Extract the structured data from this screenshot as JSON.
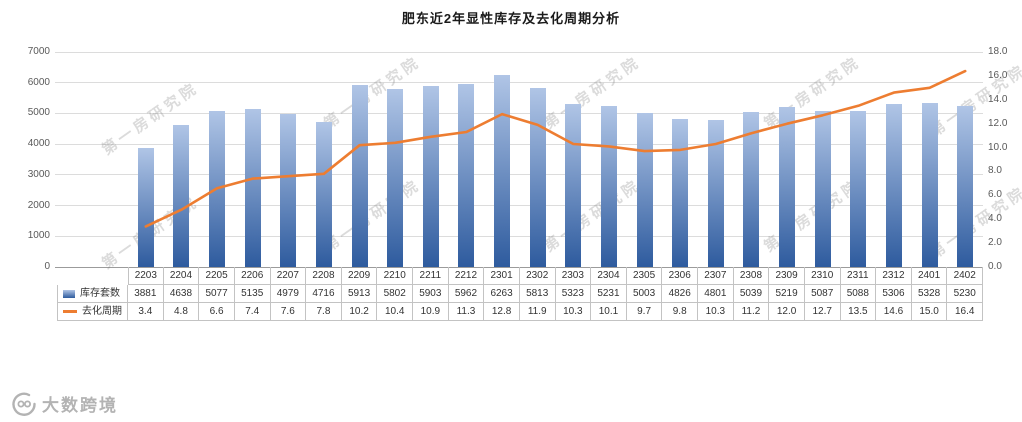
{
  "watermark": {
    "text": "第一房研究院"
  },
  "brand": {
    "name": "大数跨境"
  },
  "chart_data": {
    "type": "bar",
    "subtype": "bar+line combo with data table",
    "title": "肥东近2年显性库存及去化周期分析",
    "categories": [
      "2203",
      "2204",
      "2205",
      "2206",
      "2207",
      "2208",
      "2209",
      "2210",
      "2211",
      "2212",
      "2301",
      "2302",
      "2303",
      "2304",
      "2305",
      "2306",
      "2307",
      "2308",
      "2309",
      "2310",
      "2311",
      "2312",
      "2401",
      "2402"
    ],
    "series": [
      {
        "name": "库存套数",
        "type": "bar",
        "axis": "left",
        "color_top": "#b0c5e6",
        "color_bottom": "#2e5b9e",
        "values": [
          3881,
          4638,
          5077,
          5135,
          4979,
          4716,
          5913,
          5802,
          5903,
          5962,
          6263,
          5813,
          5323,
          5231,
          5003,
          4826,
          4801,
          5039,
          5219,
          5087,
          5088,
          5306,
          5328,
          5230
        ]
      },
      {
        "name": "去化周期",
        "type": "line",
        "axis": "right",
        "color": "#ED7D31",
        "values": [
          3.4,
          4.8,
          6.6,
          7.4,
          7.6,
          7.8,
          10.2,
          10.4,
          10.9,
          11.3,
          12.8,
          11.9,
          10.3,
          10.1,
          9.7,
          9.8,
          10.3,
          11.2,
          12.0,
          12.7,
          13.5,
          14.6,
          15.0,
          16.4
        ]
      }
    ],
    "axes": {
      "left": {
        "min": 0,
        "max": 7000,
        "step": 1000,
        "decimals": 0
      },
      "right": {
        "min": 0,
        "max": 18,
        "step": 2,
        "decimals": 1
      }
    },
    "grid": true,
    "legend_position": "data-table-left",
    "data_table": true
  }
}
